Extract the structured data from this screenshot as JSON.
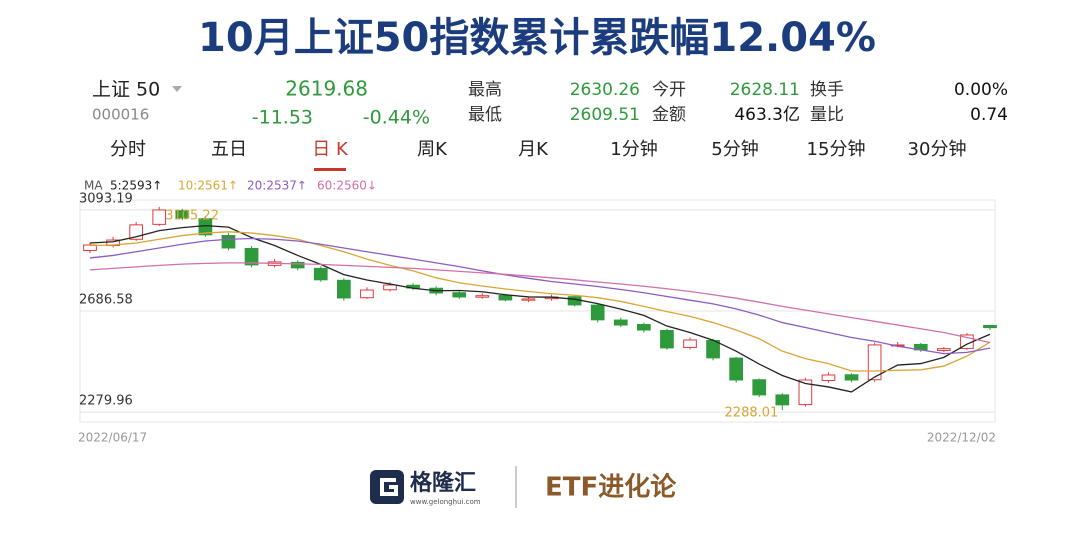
{
  "header": {
    "title": "10月上证50指数累计累跌幅12.04%",
    "name": "上证 50",
    "code": "000016",
    "price": "2619.68",
    "change": "-11.53",
    "change_pct": "-0.44%",
    "fields": [
      [
        "最高",
        "2630.26"
      ],
      [
        "最低",
        "2609.51"
      ],
      [
        "今开",
        "2628.11"
      ],
      [
        "金额",
        "463.3亿"
      ],
      [
        "换手",
        "0.00%"
      ],
      [
        "量比",
        "0.74"
      ]
    ],
    "tabs": [
      "分时",
      "五日",
      "日 K",
      "周K",
      "月K",
      "1分钟",
      "5分钟",
      "15分钟",
      "30分钟"
    ],
    "active_tab": 2
  },
  "footer": {
    "logo": "格隆汇",
    "site": "www.gelonghui.com",
    "brand": "ETF进化论"
  },
  "chart_data": {
    "type": "candlestick",
    "x": [
      "2022/06/17",
      null,
      null,
      null,
      null,
      null,
      null,
      null,
      null,
      null,
      null,
      null,
      null,
      null,
      null,
      null,
      null,
      null,
      null,
      null,
      null,
      null,
      null,
      null,
      null,
      null,
      null,
      null,
      null,
      null,
      null,
      null,
      null,
      null,
      null,
      null,
      null,
      null,
      null,
      "2022/12/02"
    ],
    "open": [
      2930,
      2950,
      2975,
      3035,
      3090,
      3058,
      2990,
      2938,
      2870,
      2882,
      2858,
      2810,
      2740,
      2772,
      2790,
      2778,
      2760,
      2742,
      2749,
      2730,
      2736,
      2744,
      2710,
      2650,
      2632,
      2608,
      2540,
      2568,
      2497,
      2410,
      2349,
      2310,
      2407,
      2430,
      2410,
      2548,
      2552,
      2528,
      2536,
      2628.11
    ],
    "high": [
      2962,
      2985,
      3045,
      3105.22,
      3098,
      3068,
      3000,
      2948,
      2895,
      2890,
      2866,
      2818,
      2782,
      2802,
      2798,
      2786,
      2768,
      2758,
      2756,
      2745,
      2752,
      2750,
      2716,
      2660,
      2640,
      2615,
      2580,
      2575,
      2502,
      2415,
      2356,
      2418,
      2440,
      2436,
      2560,
      2562,
      2558,
      2542,
      2598,
      2630.26
    ],
    "low": [
      2920,
      2942,
      2968,
      3028,
      3052,
      2985,
      2930,
      2862,
      2862,
      2850,
      2804,
      2728,
      2735,
      2765,
      2770,
      2750,
      2735,
      2736,
      2725,
      2722,
      2728,
      2705,
      2640,
      2622,
      2600,
      2530,
      2532,
      2488,
      2398,
      2340,
      2288.01,
      2302,
      2398,
      2400,
      2402,
      2540,
      2522,
      2520,
      2530,
      2609.51
    ],
    "close": [
      2952,
      2972,
      3033,
      3093,
      3061,
      2993,
      2940,
      2872,
      2884,
      2860,
      2812,
      2739,
      2771,
      2791,
      2779,
      2759,
      2743,
      2748,
      2731,
      2735,
      2743,
      2711,
      2651,
      2630,
      2610,
      2538,
      2570,
      2498,
      2409,
      2349,
      2309,
      2409,
      2429,
      2409,
      2550,
      2550,
      2530,
      2535,
      2590,
      2619.68
    ],
    "up_color": "#e03a3e",
    "down_color": "#2f9a3c",
    "ma_label": "MA",
    "series": [
      {
        "name": "5:2593↑",
        "color": "#222222",
        "values": [
          2960,
          2965,
          2985,
          3010,
          3022,
          3030,
          3024,
          2982,
          2950,
          2910,
          2874,
          2833,
          2811,
          2795,
          2778,
          2768,
          2769,
          2764,
          2752,
          2743,
          2742,
          2734,
          2716,
          2694,
          2669,
          2626,
          2600,
          2569,
          2525,
          2473,
          2427,
          2395,
          2381,
          2361,
          2421,
          2469,
          2475,
          2500,
          2553,
          2593
        ]
      },
      {
        "name": "10:2561↑",
        "color": "#d9a634",
        "values": [
          2950,
          2952,
          2960,
          2975,
          2990,
          3000,
          3005,
          3000,
          2990,
          2975,
          2950,
          2925,
          2895,
          2870,
          2848,
          2820,
          2800,
          2787,
          2775,
          2765,
          2756,
          2750,
          2740,
          2725,
          2705,
          2684,
          2665,
          2640,
          2610,
          2575,
          2525,
          2495,
          2475,
          2445,
          2445,
          2448,
          2450,
          2465,
          2505,
          2561
        ]
      },
      {
        "name": "20:2537↑",
        "color": "#8a5cc4",
        "values": [
          2900,
          2910,
          2925,
          2940,
          2955,
          2968,
          2975,
          2978,
          2975,
          2968,
          2955,
          2940,
          2925,
          2910,
          2895,
          2880,
          2865,
          2848,
          2832,
          2818,
          2805,
          2795,
          2785,
          2773,
          2760,
          2745,
          2730,
          2715,
          2695,
          2670,
          2640,
          2620,
          2600,
          2580,
          2565,
          2545,
          2530,
          2515,
          2520,
          2537
        ]
      },
      {
        "name": "60:2560↓",
        "color": "#d46fa8",
        "values": [
          2852,
          2858,
          2864,
          2870,
          2875,
          2878,
          2880,
          2880,
          2878,
          2876,
          2874,
          2870,
          2866,
          2862,
          2858,
          2852,
          2846,
          2840,
          2834,
          2827,
          2820,
          2812,
          2803,
          2795,
          2786,
          2776,
          2765,
          2752,
          2738,
          2722,
          2705,
          2690,
          2675,
          2660,
          2645,
          2630,
          2615,
          2600,
          2580,
          2560
        ]
      }
    ],
    "ylim": [
      2240,
      3133
    ],
    "yticks": [
      3093.19,
      2686.58,
      2279.96
    ],
    "grid": true
  }
}
